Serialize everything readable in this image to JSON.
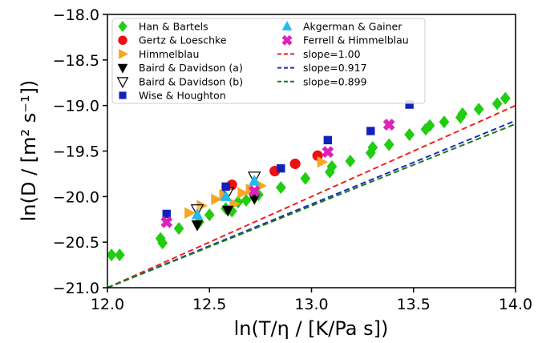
{
  "chart_data": {
    "type": "scatter",
    "xlim": [
      12.0,
      14.0
    ],
    "ylim": [
      -21.0,
      -18.0
    ],
    "x_ticks": [
      "12.0",
      "12.5",
      "13.0",
      "13.5",
      "14.0"
    ],
    "y_ticks": [
      "−21.0",
      "−20.5",
      "−20.0",
      "−19.5",
      "−19.0",
      "−18.5",
      "−18.0"
    ],
    "xlabel": "ln(T/η / [K/Pa s])",
    "ylabel": "ln(D / [m² s⁻¹])",
    "legend_position": "top-left",
    "grid": false,
    "series": [
      {
        "name": "Han & Bartels",
        "marker": "diamond",
        "color": "#22cc11",
        "x": [
          12.02,
          12.06,
          12.26,
          12.27,
          12.35,
          12.45,
          12.5,
          12.58,
          12.61,
          12.64,
          12.68,
          12.72,
          12.74,
          12.85,
          12.97,
          13.09,
          13.1,
          13.19,
          13.29,
          13.3,
          13.38,
          13.48,
          13.56,
          13.58,
          13.65,
          13.73,
          13.74,
          13.82,
          13.91,
          13.95
        ],
        "y": [
          -20.64,
          -20.64,
          -20.46,
          -20.51,
          -20.35,
          -20.28,
          -20.2,
          -20.13,
          -20.16,
          -20.06,
          -20.04,
          -20.01,
          -19.98,
          -19.9,
          -19.8,
          -19.73,
          -19.67,
          -19.61,
          -19.52,
          -19.46,
          -19.43,
          -19.32,
          -19.26,
          -19.22,
          -19.18,
          -19.13,
          -19.09,
          -19.04,
          -18.98,
          -18.92
        ]
      },
      {
        "name": "Gertz & Loeschke",
        "marker": "circle",
        "color": "#ee1111",
        "x": [
          12.61,
          12.82,
          12.92,
          13.03
        ],
        "y": [
          -19.87,
          -19.72,
          -19.64,
          -19.55
        ]
      },
      {
        "name": "Himmelblau",
        "marker": "triangle-right",
        "color": "#f5a623",
        "x": [
          12.4,
          12.46,
          12.53,
          12.57,
          12.62,
          12.66,
          12.7,
          12.75,
          13.05
        ],
        "y": [
          -20.18,
          -20.1,
          -20.03,
          -19.98,
          -20.08,
          -19.96,
          -19.92,
          -19.88,
          -19.62
        ]
      },
      {
        "name": "Baird & Davidson (a)",
        "marker": "triangle-down",
        "color": "#000000",
        "x": [
          12.44,
          12.59,
          12.72
        ],
        "y": [
          -20.31,
          -20.15,
          -20.02
        ]
      },
      {
        "name": "Baird & Davidson (b)",
        "marker": "triangle-down-open",
        "color": "#000000",
        "x": [
          12.44,
          12.59,
          12.72
        ],
        "y": [
          -20.14,
          -19.95,
          -19.78
        ]
      },
      {
        "name": "Wise & Houghton",
        "marker": "square",
        "color": "#1122bb",
        "x": [
          12.29,
          12.58,
          12.85,
          13.08,
          13.29,
          13.48
        ],
        "y": [
          -20.19,
          -19.89,
          -19.69,
          -19.38,
          -19.28,
          -18.99
        ]
      },
      {
        "name": "Akgerman & Gainer",
        "marker": "triangle-up",
        "color": "#22bbee",
        "x": [
          12.44,
          12.58,
          12.72
        ],
        "y": [
          -20.2,
          -20.0,
          -19.83
        ]
      },
      {
        "name": "Ferrell & Himmelblau",
        "marker": "x-thick",
        "color": "#dd22bb",
        "x": [
          12.29,
          12.72,
          13.08,
          13.38
        ],
        "y": [
          -20.28,
          -19.94,
          -19.51,
          -19.21
        ]
      }
    ],
    "lines": [
      {
        "name": "slope=1.00",
        "color": "#ee2222",
        "slope": 1.0,
        "x": [
          12.0,
          14.0
        ],
        "y": [
          -21.0,
          -19.0
        ]
      },
      {
        "name": "slope=0.917",
        "color": "#1a2fbb",
        "slope": 0.917,
        "x": [
          12.0,
          14.0
        ],
        "y": [
          -21.0,
          -19.166
        ]
      },
      {
        "name": "slope=0.899",
        "color": "#1d7a1d",
        "slope": 0.899,
        "x": [
          12.0,
          14.0
        ],
        "y": [
          -21.0,
          -19.202
        ]
      }
    ]
  }
}
